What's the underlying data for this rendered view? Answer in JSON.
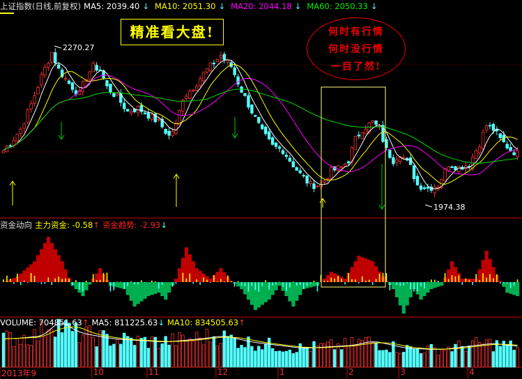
{
  "header": {
    "title": "上证指数(日线,前复权)",
    "ma5": "MA5: 2039.40",
    "ma10": "MA10: 2051.30",
    "ma20": "MA20: 2044.18",
    "ma60": "MA60: 2050.33",
    "ma5_dir": "↓",
    "ma10_dir": "↓",
    "ma20_dir": "↓",
    "ma60_dir": "↓"
  },
  "annotations": {
    "slogan": "精准看大盘!",
    "oval_lines": [
      "何时有行情",
      "何时没行情",
      "一目了然!"
    ],
    "high_label": "2270.27",
    "low_label": "1974.38"
  },
  "indicator": {
    "name": "资金动向",
    "main_fund": "主力资金: -0.58",
    "main_fund_dir": "↑",
    "trend": "资金趋势: -2.93",
    "trend_dir": "↓"
  },
  "volume": {
    "vol": "VOLUME: 704851.63",
    "vol_dir": "↑",
    "ma5": "MA5: 811225.63",
    "ma5_dir": "↓",
    "ma10": "MA10: 834505.63",
    "ma10_dir": "↑"
  },
  "colors": {
    "up": "#ff3232",
    "down": "#54ffff",
    "ma5": "#ffffff",
    "ma10": "#ffff00",
    "ma20": "#ff00ff",
    "ma60": "#00e000",
    "fund_pos": "#c00000",
    "fund_neg": "#00b050"
  },
  "chart_data": {
    "type": "candlestick",
    "bars": 150,
    "x_tick_labels": [
      "2013年9",
      "10",
      "11",
      "12",
      "1",
      "2",
      "3",
      "4"
    ],
    "x_tick_bars": [
      0,
      26,
      42,
      62,
      80,
      100,
      115,
      135
    ],
    "price_marks": {
      "high": 2270.27,
      "low": 1974.38
    },
    "close_keypoints": [
      [
        0,
        2079
      ],
      [
        2,
        2092
      ],
      [
        5,
        2118
      ],
      [
        8,
        2164
      ],
      [
        11,
        2216
      ],
      [
        14,
        2261
      ],
      [
        16,
        2229
      ],
      [
        19,
        2203
      ],
      [
        22,
        2183
      ],
      [
        24,
        2216
      ],
      [
        26,
        2235
      ],
      [
        28,
        2229
      ],
      [
        30,
        2196
      ],
      [
        33,
        2177
      ],
      [
        36,
        2151
      ],
      [
        39,
        2157
      ],
      [
        42,
        2144
      ],
      [
        45,
        2131
      ],
      [
        48,
        2105
      ],
      [
        50,
        2125
      ],
      [
        52,
        2177
      ],
      [
        55,
        2196
      ],
      [
        58,
        2222
      ],
      [
        61,
        2242
      ],
      [
        63,
        2255
      ],
      [
        66,
        2235
      ],
      [
        69,
        2190
      ],
      [
        72,
        2151
      ],
      [
        75,
        2112
      ],
      [
        78,
        2086
      ],
      [
        81,
        2079
      ],
      [
        83,
        2060
      ],
      [
        86,
        2034
      ],
      [
        89,
        2014
      ],
      [
        92,
        2014
      ],
      [
        95,
        2040
      ],
      [
        98,
        2047
      ],
      [
        100,
        2060
      ],
      [
        102,
        2099
      ],
      [
        104,
        2118
      ],
      [
        107,
        2131
      ],
      [
        109,
        2118
      ],
      [
        111,
        2079
      ],
      [
        113,
        2060
      ],
      [
        115,
        2073
      ],
      [
        118,
        2047
      ],
      [
        120,
        2014
      ],
      [
        123,
        2008
      ],
      [
        126,
        2014
      ],
      [
        129,
        2053
      ],
      [
        132,
        2047
      ],
      [
        135,
        2053
      ],
      [
        138,
        2092
      ],
      [
        140,
        2125
      ],
      [
        142,
        2118
      ],
      [
        144,
        2099
      ],
      [
        147,
        2079
      ],
      [
        149,
        2073
      ]
    ],
    "fund_keypoints": [
      [
        0,
        0
      ],
      [
        4,
        8
      ],
      [
        9,
        30
      ],
      [
        13,
        65
      ],
      [
        17,
        30
      ],
      [
        20,
        -5
      ],
      [
        23,
        -20
      ],
      [
        26,
        5
      ],
      [
        28,
        20
      ],
      [
        31,
        -5
      ],
      [
        35,
        -10
      ],
      [
        38,
        -35
      ],
      [
        42,
        -20
      ],
      [
        45,
        -15
      ],
      [
        47,
        -25
      ],
      [
        50,
        5
      ],
      [
        53,
        50
      ],
      [
        56,
        20
      ],
      [
        60,
        5
      ],
      [
        63,
        20
      ],
      [
        66,
        2
      ],
      [
        69,
        -10
      ],
      [
        73,
        -40
      ],
      [
        77,
        -25
      ],
      [
        80,
        -5
      ],
      [
        84,
        -35
      ],
      [
        87,
        -10
      ],
      [
        91,
        -5
      ],
      [
        95,
        15
      ],
      [
        99,
        5
      ],
      [
        103,
        38
      ],
      [
        107,
        30
      ],
      [
        110,
        8
      ],
      [
        113,
        -10
      ],
      [
        116,
        -45
      ],
      [
        119,
        -10
      ],
      [
        121,
        -25
      ],
      [
        124,
        -10
      ],
      [
        127,
        -5
      ],
      [
        130,
        30
      ],
      [
        133,
        5
      ],
      [
        137,
        5
      ],
      [
        140,
        45
      ],
      [
        143,
        10
      ],
      [
        146,
        -15
      ],
      [
        149,
        -20
      ]
    ],
    "volume_keypoints": [
      [
        0,
        45
      ],
      [
        10,
        50
      ],
      [
        14,
        75
      ],
      [
        20,
        55
      ],
      [
        30,
        45
      ],
      [
        45,
        40
      ],
      [
        55,
        45
      ],
      [
        62,
        50
      ],
      [
        70,
        40
      ],
      [
        85,
        30
      ],
      [
        100,
        35
      ],
      [
        105,
        42
      ],
      [
        115,
        30
      ],
      [
        125,
        28
      ],
      [
        140,
        38
      ],
      [
        149,
        32
      ]
    ],
    "volume_ylabel": "VOLUME"
  }
}
